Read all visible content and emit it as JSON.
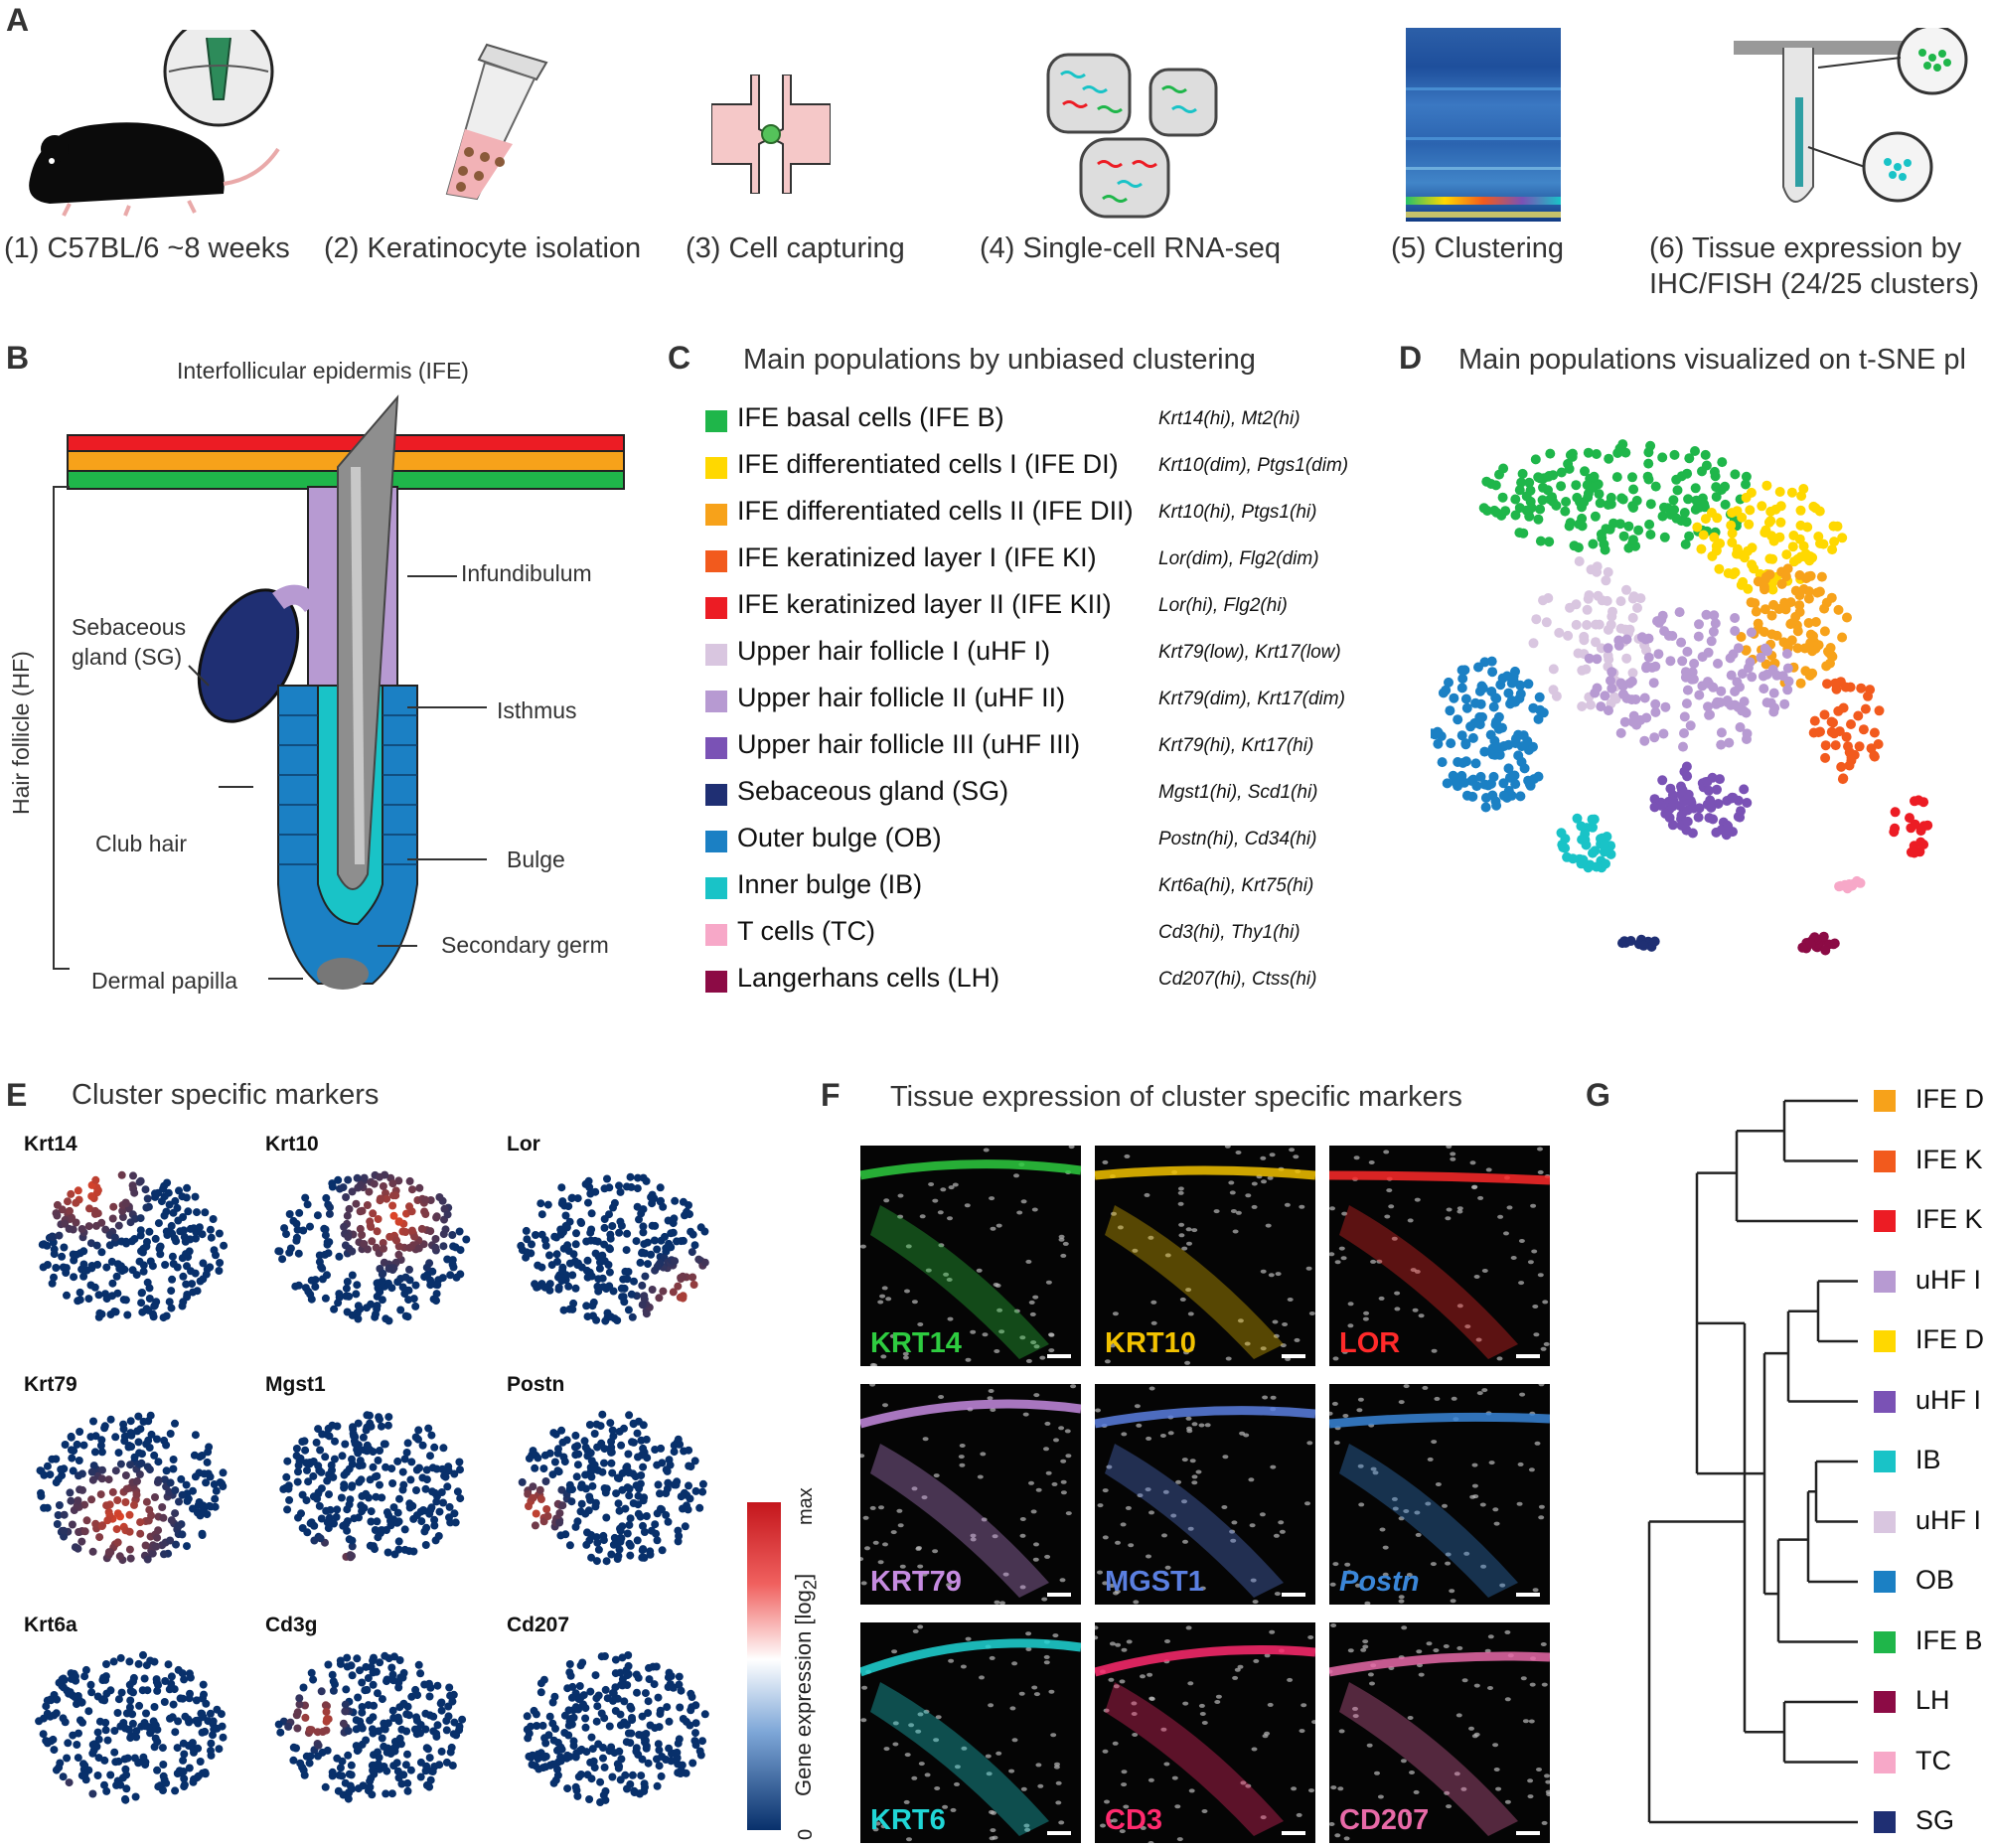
{
  "panels": {
    "A": {
      "label": "A",
      "steps": [
        {
          "text": "(1) C57BL/6 ~8 weeks"
        },
        {
          "text": "(2) Keratinocyte isolation"
        },
        {
          "text": "(3) Cell capturing"
        },
        {
          "text": "(4) Single-cell RNA-seq"
        },
        {
          "text": "(5) Clustering"
        },
        {
          "text": "(6) Tissue expression by",
          "text2": "IHC/FISH (24/25 clusters)"
        }
      ]
    },
    "B": {
      "label": "B",
      "labels": {
        "ife": "Interfollicular epidermis (IFE)",
        "infundibulum": "Infundibulum",
        "sebaceous": "Sebaceous",
        "gland": "gland (SG)",
        "isthmus": "Isthmus",
        "hf": "Hair follicle (HF)",
        "club": "Club hair",
        "bulge": "Bulge",
        "secondary": "Secondary germ",
        "papilla": "Dermal papilla"
      }
    },
    "C": {
      "label": "C",
      "title": "Main populations by unbiased clustering",
      "populations": [
        {
          "name": "IFE basal cells (IFE B)",
          "markers": "Krt14(hi), Mt2(hi)",
          "color": "#1fb64a"
        },
        {
          "name": "IFE differentiated cells I (IFE DI)",
          "markers": "Krt10(dim), Ptgs1(dim)",
          "color": "#ffd800"
        },
        {
          "name": "IFE differentiated cells II (IFE DII)",
          "markers": "Krt10(hi), Ptgs1(hi)",
          "color": "#f7a21a"
        },
        {
          "name": "IFE keratinized layer I (IFE KI)",
          "markers": "Lor(dim), Flg2(dim)",
          "color": "#f25a1d"
        },
        {
          "name": "IFE keratinized layer II (IFE KII)",
          "markers": "Lor(hi), Flg2(hi)",
          "color": "#ec1c24"
        },
        {
          "name": "Upper hair follicle I (uHF I)",
          "markers": "Krt79(low), Krt17(low)",
          "color": "#d9c6e0"
        },
        {
          "name": "Upper hair follicle II (uHF II)",
          "markers": "Krt79(dim), Krt17(dim)",
          "color": "#b79ad2"
        },
        {
          "name": "Upper hair follicle III (uHF III)",
          "markers": "Krt79(hi), Krt17(hi)",
          "color": "#7a52b5"
        },
        {
          "name": "Sebaceous gland (SG)",
          "markers": "Mgst1(hi), Scd1(hi)",
          "color": "#1f2f73"
        },
        {
          "name": "Outer bulge (OB)",
          "markers": "Postn(hi), Cd34(hi)",
          "color": "#1b80c4"
        },
        {
          "name": "Inner bulge (IB)",
          "markers": "Krt6a(hi), Krt75(hi)",
          "color": "#19c3c7"
        },
        {
          "name": "T cells (TC)",
          "markers": "Cd3(hi), Thy1(hi)",
          "color": "#f7a8c8"
        },
        {
          "name": "Langerhans cells (LH)",
          "markers": "Cd207(hi), Ctss(hi)",
          "color": "#8c0b45"
        }
      ]
    },
    "D": {
      "label": "D",
      "title": "Main populations visualized on t-SNE pl"
    },
    "E": {
      "label": "E",
      "title": "Cluster specific markers",
      "genes": [
        "Krt14",
        "Krt10",
        "Lor",
        "Krt79",
        "Mgst1",
        "Postn",
        "Krt6a",
        "Cd3g",
        "Cd207"
      ],
      "colorbar": {
        "label": "Gene expression [log",
        "sub": "2",
        "close": "]",
        "max": "max",
        "min": "0"
      }
    },
    "F": {
      "label": "F",
      "title": "Tissue expression of cluster specific markers",
      "stains": [
        {
          "text": "KRT14",
          "color": "#2ecc40"
        },
        {
          "text": "KRT10",
          "color": "#f2c200"
        },
        {
          "text": "LOR",
          "color": "#ff2a2a"
        },
        {
          "text": "KRT79",
          "color": "#c58be0"
        },
        {
          "text": "MGST1",
          "color": "#5a7fe0"
        },
        {
          "text": "Postn",
          "color": "#3a86d8"
        },
        {
          "text": "KRT6",
          "color": "#20d6d6"
        },
        {
          "text": "CD3",
          "color": "#ff2a6e"
        },
        {
          "text": "CD207",
          "color": "#e86aa8"
        }
      ]
    },
    "G": {
      "label": "G",
      "leaves": [
        {
          "text": "IFE D",
          "color": "#f7a21a"
        },
        {
          "text": "IFE K",
          "color": "#f25a1d"
        },
        {
          "text": "IFE K",
          "color": "#ec1c24"
        },
        {
          "text": "uHF I",
          "color": "#b79ad2"
        },
        {
          "text": "IFE D",
          "color": "#ffd800"
        },
        {
          "text": "uHF I",
          "color": "#7a52b5"
        },
        {
          "text": "IB",
          "color": "#19c3c7"
        },
        {
          "text": "uHF I",
          "color": "#d9c6e0"
        },
        {
          "text": "OB",
          "color": "#1b80c4"
        },
        {
          "text": "IFE B",
          "color": "#1fb64a"
        },
        {
          "text": "LH",
          "color": "#8c0b45"
        },
        {
          "text": "TC",
          "color": "#f7a8c8"
        },
        {
          "text": "SG",
          "color": "#1f2f73"
        }
      ]
    }
  }
}
